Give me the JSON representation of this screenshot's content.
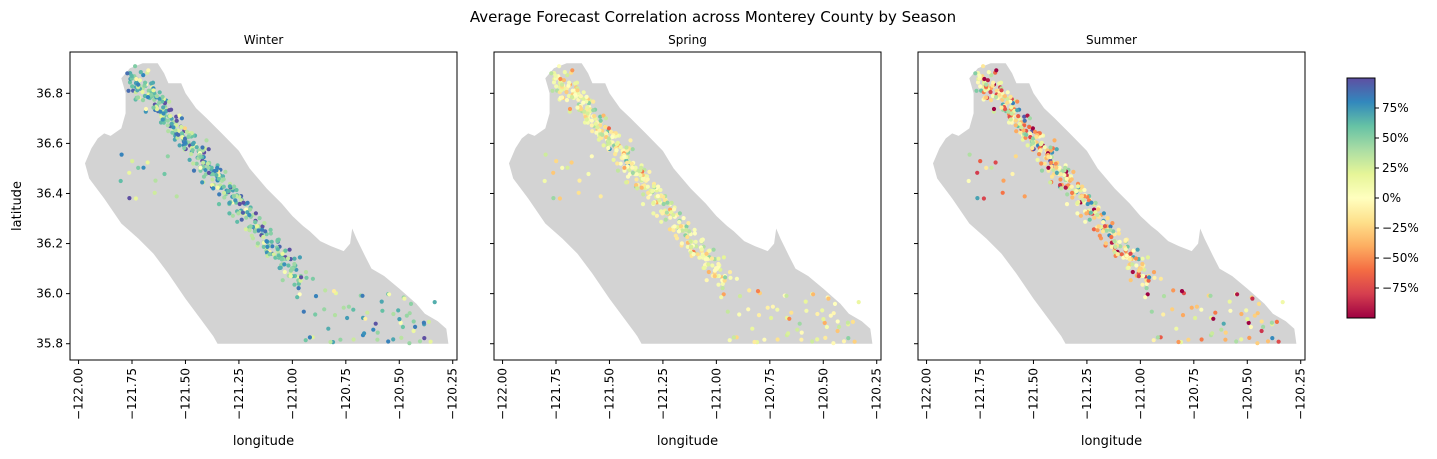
{
  "suptitle": "Average Forecast Correlation across Monterey County by Season",
  "chart_data": [
    {
      "type": "scatter",
      "title": "Winter",
      "xlabel": "longitude",
      "ylabel": "latitude",
      "xlim": [
        -122.04,
        -120.23
      ],
      "ylim": [
        35.735,
        36.965
      ],
      "xticks": [
        -122.0,
        -121.75,
        -121.5,
        -121.25,
        -121.0,
        -120.75,
        -120.5,
        -120.25
      ],
      "xtick_labels": [
        "−122.00",
        "−121.75",
        "−121.50",
        "−121.25",
        "−121.00",
        "−120.75",
        "−120.50",
        "−120.25"
      ],
      "yticks": [
        35.8,
        36.0,
        36.2,
        36.4,
        36.6,
        36.8
      ],
      "ytick_labels": [
        "35.8",
        "36.0",
        "36.2",
        "36.4",
        "36.6",
        "36.8"
      ],
      "background": "Monterey County outline (gray)",
      "correlation_bias": 0.55,
      "correlation_spread": 0.25
    },
    {
      "type": "scatter",
      "title": "Spring",
      "xlabel": "longitude",
      "ylabel": "",
      "xlim": [
        -122.04,
        -120.23
      ],
      "ylim": [
        35.735,
        36.965
      ],
      "xticks": [
        -122.0,
        -121.75,
        -121.5,
        -121.25,
        -121.0,
        -120.75,
        -120.5,
        -120.25
      ],
      "xtick_labels": [
        "−122.00",
        "−121.75",
        "−121.50",
        "−121.25",
        "−121.00",
        "−120.75",
        "−120.50",
        "−120.25"
      ],
      "yticks": [
        35.8,
        36.0,
        36.2,
        36.4,
        36.6,
        36.8
      ],
      "ytick_labels": [],
      "background": "Monterey County outline (gray)",
      "correlation_bias": 0.05,
      "correlation_spread": 0.22
    },
    {
      "type": "scatter",
      "title": "Summer",
      "xlabel": "longitude",
      "ylabel": "",
      "xlim": [
        -122.04,
        -120.23
      ],
      "ylim": [
        35.735,
        36.965
      ],
      "xticks": [
        -122.0,
        -121.75,
        -121.5,
        -121.25,
        -121.0,
        -120.75,
        -120.5,
        -120.25
      ],
      "xtick_labels": [
        "−122.00",
        "−121.75",
        "−121.50",
        "−121.25",
        "−121.00",
        "−120.75",
        "−120.50",
        "−120.25"
      ],
      "yticks": [
        35.8,
        36.0,
        36.2,
        36.4,
        36.6,
        36.8
      ],
      "ytick_labels": [],
      "background": "Monterey County outline (gray)",
      "correlation_bias": -0.1,
      "correlation_spread": 0.45
    }
  ],
  "colorbar": {
    "colormap": "Spectral",
    "range": [
      -1.0,
      1.0
    ],
    "ticks": [
      -0.75,
      -0.5,
      -0.25,
      0,
      0.25,
      0.5,
      0.75
    ],
    "tick_labels": [
      "−75%",
      "−50%",
      "−25%",
      "0%",
      "25%",
      "50%",
      "75%"
    ]
  },
  "colors": {
    "county_fill": "#d3d3d3",
    "axes_edge": "#000000"
  }
}
